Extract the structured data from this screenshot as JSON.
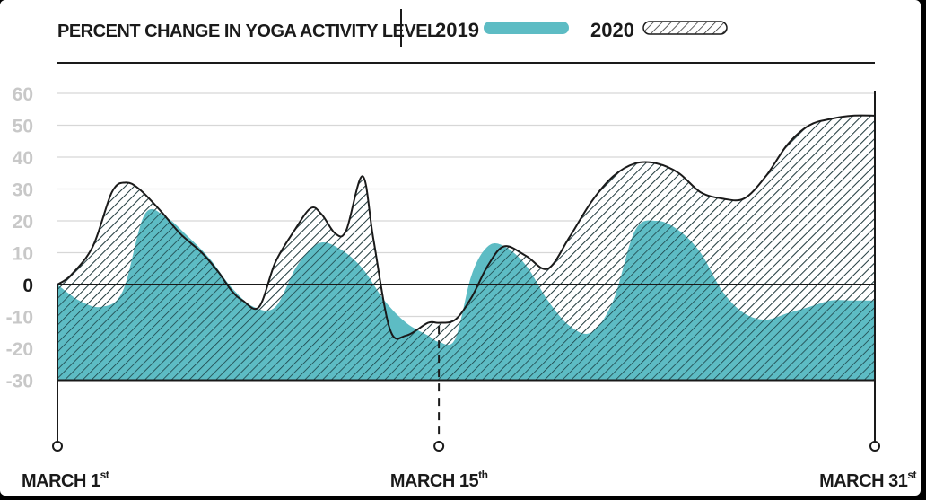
{
  "chart_data": {
    "type": "area",
    "title": "PERCENT CHANGE IN YOGA ACTIVITY LEVEL",
    "ylim": [
      -30,
      60
    ],
    "yticks": [
      60,
      50,
      40,
      30,
      20,
      10,
      0,
      -10,
      -20,
      -30
    ],
    "xlim": [
      1,
      31
    ],
    "grid": true,
    "legend": "top",
    "xticks": [
      {
        "x": 1,
        "main": "MARCH 1",
        "sup": "st"
      },
      {
        "x": 15,
        "main": "MARCH 15",
        "sup": "th"
      },
      {
        "x": 31,
        "main": "MARCH 31",
        "sup": "st"
      }
    ],
    "series": [
      {
        "name": "2019",
        "color": "#5dbcc4",
        "x": [
          1,
          1.8,
          2.6,
          3.4,
          4.2,
          5.0,
          5.8,
          6.6,
          7.4,
          8.2,
          9.0,
          9.8,
          10.6,
          11.4,
          12.2,
          13.0,
          13.8,
          14.6,
          15.0,
          15.6,
          16.2,
          16.8,
          17.4,
          18.2,
          19.0,
          19.8,
          20.6,
          21.4,
          22.2,
          23.0,
          23.8,
          24.6,
          25.4,
          26.2,
          27.0,
          27.8,
          28.6,
          29.4,
          30.2,
          31.0
        ],
        "values": [
          0,
          -5,
          -7,
          -2,
          22,
          21,
          15,
          8,
          -1,
          -7,
          -7,
          6,
          13,
          11,
          5,
          -5,
          -12,
          -16,
          -18,
          -17,
          3,
          12,
          12,
          6,
          -5,
          -13,
          -15,
          -5,
          17,
          20,
          17,
          10,
          -2,
          -9,
          -11,
          -9,
          -7,
          -5,
          -5,
          -5
        ]
      },
      {
        "name": "2020",
        "color": "hatch",
        "x": [
          1,
          1.5,
          2.3,
          3.0,
          3.5,
          4.0,
          4.8,
          5.5,
          6.3,
          6.9,
          7.4,
          7.8,
          8.4,
          9.0,
          9.7,
          10.3,
          10.7,
          11.2,
          11.6,
          12.2,
          12.6,
          13.2,
          13.8,
          14.6,
          15.0,
          15.6,
          16.2,
          16.8,
          17.4,
          18.2,
          19.0,
          19.8,
          20.6,
          21.4,
          22.2,
          23.0,
          23.8,
          24.6,
          25.4,
          26.2,
          27.0,
          27.8,
          28.6,
          29.4,
          30.2,
          31.0
        ],
        "values": [
          0,
          3,
          12,
          29,
          32,
          30,
          23,
          16,
          10,
          4,
          -2,
          -5,
          -7,
          7,
          17,
          24,
          22,
          16,
          17,
          34,
          14,
          -14,
          -16,
          -12,
          -12,
          -11,
          -4,
          6,
          12,
          9,
          5,
          15,
          26,
          34,
          38,
          38,
          35,
          29,
          27,
          27,
          34,
          44,
          50,
          52,
          53,
          53
        ]
      }
    ]
  }
}
